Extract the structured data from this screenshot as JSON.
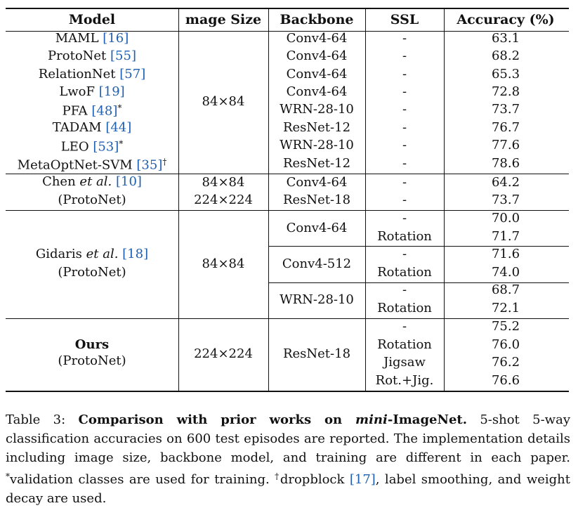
{
  "table": {
    "headers": [
      "Model",
      "mage Size",
      "Backbone",
      "SSL",
      "Accuracy (%)"
    ],
    "groups": [
      {
        "size": "84×84",
        "rows": [
          {
            "model": "MAML ",
            "cite": "[16]",
            "mark": "",
            "backbone": "Conv4-64",
            "ssl": "-",
            "acc": "63.1"
          },
          {
            "model": "ProtoNet ",
            "cite": "[55]",
            "mark": "",
            "backbone": "Conv4-64",
            "ssl": "-",
            "acc": "68.2"
          },
          {
            "model": "RelationNet ",
            "cite": "[57]",
            "mark": "",
            "backbone": "Conv4-64",
            "ssl": "-",
            "acc": "65.3"
          },
          {
            "model": "LwoF ",
            "cite": "[19]",
            "mark": "",
            "backbone": "Conv4-64",
            "ssl": "-",
            "acc": "72.8"
          },
          {
            "model": "PFA ",
            "cite": "[48]",
            "mark": "*",
            "backbone": "WRN-28-10",
            "ssl": "-",
            "acc": "73.7"
          },
          {
            "model": "TADAM ",
            "cite": "[44]",
            "mark": "",
            "backbone": "ResNet-12",
            "ssl": "-",
            "acc": "76.7"
          },
          {
            "model": "LEO ",
            "cite": "[53]",
            "mark": "*",
            "backbone": "WRN-28-10",
            "ssl": "-",
            "acc": "77.6"
          },
          {
            "model": "MetaOptNet-SVM ",
            "cite": "[35]",
            "mark": "†",
            "backbone": "ResNet-12",
            "ssl": "-",
            "acc": "78.6"
          }
        ]
      },
      {
        "model_line1_pre": "Chen ",
        "model_line1_it": "et al.",
        "model_line1_cite": "[10]",
        "model_line2": "(ProtoNet)",
        "rows": [
          {
            "size": "84×84",
            "backbone": "Conv4-64",
            "ssl": "-",
            "acc": "64.2"
          },
          {
            "size": "224×224",
            "backbone": "ResNet-18",
            "ssl": "-",
            "acc": "73.7"
          }
        ]
      },
      {
        "model_line1_pre": "Gidaris ",
        "model_line1_it": "et al.",
        "model_line1_cite": "[18]",
        "model_line2": "(ProtoNet)",
        "size": "84×84",
        "blocks": [
          {
            "backbone": "Conv4-64",
            "ssl": [
              "-",
              "Rotation"
            ],
            "acc": [
              "70.0",
              "71.7"
            ]
          },
          {
            "backbone": "Conv4-512",
            "ssl": [
              "-",
              "Rotation"
            ],
            "acc": [
              "71.6",
              "74.0"
            ]
          },
          {
            "backbone": "WRN-28-10",
            "ssl": [
              "-",
              "Rotation"
            ],
            "acc": [
              "68.7",
              "72.1"
            ]
          }
        ]
      },
      {
        "model_line1": "Ours",
        "model_line2": "(ProtoNet)",
        "size": "224×224",
        "backbone": "ResNet-18",
        "ssl": [
          "-",
          "Rotation",
          "Jigsaw",
          "Rot.+Jig."
        ],
        "acc": [
          "75.2",
          "76.0",
          "76.2",
          "76.6"
        ]
      }
    ]
  },
  "caption": {
    "label": "Table 3: ",
    "bold_a": "Comparison with prior works on ",
    "bold_it": "mini",
    "bold_b": "-ImageNet.",
    "text1": " 5-shot 5-way classification accuracies on 600 test episodes are reported. The implementation details including image size, backbone model, and training are different in each paper. ",
    "star": "*",
    "text2": "validation classes are used for training. ",
    "dagger": "†",
    "text3": "dropblock ",
    "cite": "[17]",
    "text4": ", label smoothing, and weight decay are used."
  }
}
